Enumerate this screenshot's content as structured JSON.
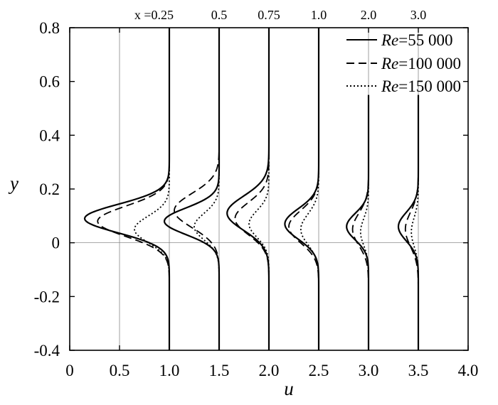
{
  "chart_data": {
    "type": "line",
    "xlabel": "u",
    "ylabel": "y",
    "xlim": [
      0,
      4.0
    ],
    "ylim": [
      -0.4,
      0.8
    ],
    "x_ticks": [
      "0",
      "0.5",
      "1.0",
      "1.5",
      "2.0",
      "2.5",
      "3.0",
      "3.5",
      "4.0"
    ],
    "y_ticks": [
      "-0.4",
      "-0.2",
      "0",
      "0.2",
      "0.4",
      "0.6",
      "0.8"
    ],
    "station_labels": [
      "x =0.25",
      "0.5",
      "0.75",
      "1.0",
      "2.0",
      "3.0"
    ],
    "legend": [
      {
        "italic": "Re",
        "rest": "=55 000",
        "dash": "solid"
      },
      {
        "italic": "Re",
        "rest": "=100 000",
        "dash": "dashed"
      },
      {
        "italic": "Re",
        "rest": "=150 000",
        "dash": "dotted"
      }
    ],
    "reference_lines": {
      "x": [
        0.5,
        1.0,
        1.5,
        2.0,
        2.5,
        3.0,
        3.5
      ],
      "y": [
        0
      ]
    },
    "profiles": [
      {
        "station": "x =0.25",
        "baseline": 1.0,
        "series": [
          {
            "name": "Re=55 000",
            "deficit": 0.85,
            "center": 0.09,
            "width": 0.075,
            "top": 0.8
          },
          {
            "name": "Re=100 000",
            "deficit": 0.72,
            "center": 0.08,
            "width": 0.08,
            "top": 0.8
          },
          {
            "name": "Re=150 000",
            "deficit": 0.35,
            "center": 0.05,
            "width": 0.07,
            "top": 0.8
          }
        ]
      },
      {
        "station": "0.5",
        "baseline": 1.5,
        "series": [
          {
            "name": "Re=55 000",
            "deficit": 0.55,
            "center": 0.08,
            "width": 0.07,
            "top": 0.8
          },
          {
            "name": "Re=100 000",
            "deficit": 0.45,
            "center": 0.12,
            "width": 0.09,
            "top": 0.8
          },
          {
            "name": "Re=150 000",
            "deficit": 0.25,
            "center": 0.06,
            "width": 0.07,
            "top": 0.8
          }
        ]
      },
      {
        "station": "0.75",
        "baseline": 2.0,
        "series": [
          {
            "name": "Re=55 000",
            "deficit": 0.42,
            "center": 0.11,
            "width": 0.09,
            "top": 0.8
          },
          {
            "name": "Re=100 000",
            "deficit": 0.34,
            "center": 0.09,
            "width": 0.085,
            "top": 0.8
          },
          {
            "name": "Re=150 000",
            "deficit": 0.2,
            "center": 0.07,
            "width": 0.07,
            "top": 0.8
          }
        ]
      },
      {
        "station": "1.0",
        "baseline": 2.5,
        "series": [
          {
            "name": "Re=55 000",
            "deficit": 0.34,
            "center": 0.07,
            "width": 0.08,
            "top": 0.8
          },
          {
            "name": "Re=100 000",
            "deficit": 0.3,
            "center": 0.06,
            "width": 0.085,
            "top": 0.8
          },
          {
            "name": "Re=150 000",
            "deficit": 0.18,
            "center": 0.05,
            "width": 0.08,
            "top": 0.8
          }
        ]
      },
      {
        "station": "2.0",
        "baseline": 3.0,
        "series": [
          {
            "name": "Re=55 000",
            "deficit": 0.22,
            "center": 0.06,
            "width": 0.07,
            "top": 0.55
          },
          {
            "name": "Re=100 000",
            "deficit": 0.16,
            "center": 0.05,
            "width": 0.085,
            "top": 0.55
          },
          {
            "name": "Re=150 000",
            "deficit": 0.08,
            "center": 0.04,
            "width": 0.07,
            "top": 0.55
          }
        ]
      },
      {
        "station": "3.0",
        "baseline": 3.5,
        "series": [
          {
            "name": "Re=55 000",
            "deficit": 0.2,
            "center": 0.06,
            "width": 0.075,
            "top": 0.55
          },
          {
            "name": "Re=100 000",
            "deficit": 0.13,
            "center": 0.05,
            "width": 0.09,
            "top": 0.55
          },
          {
            "name": "Re=150 000",
            "deficit": 0.07,
            "center": 0.04,
            "width": 0.075,
            "top": 0.55
          }
        ]
      }
    ]
  }
}
